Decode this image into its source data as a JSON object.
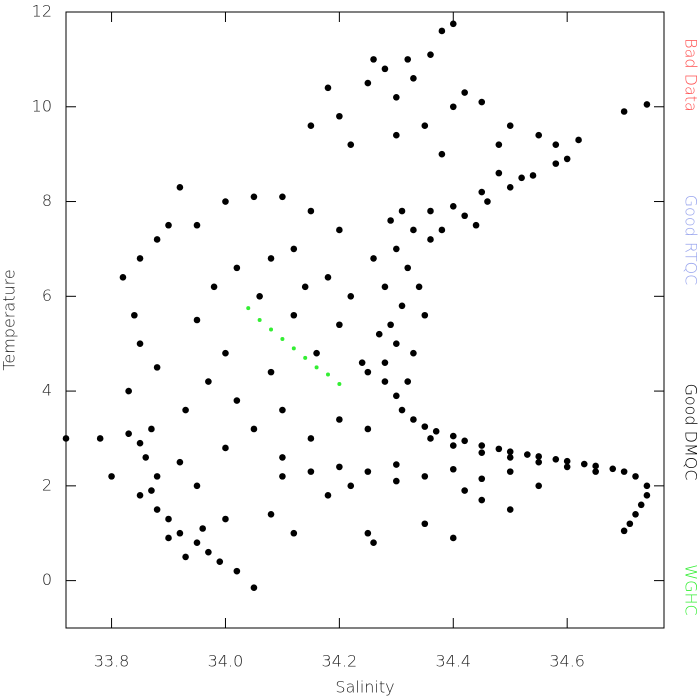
{
  "chart_data": {
    "type": "scatter",
    "x_label": "Salinity",
    "y_label": "Temperature",
    "xlim": [
      33.72,
      34.77
    ],
    "ylim": [
      -1,
      12
    ],
    "xticks": [
      33.8,
      {
        "value": 34,
        "label": "34.0"
      },
      34.2,
      34.4,
      34.6
    ],
    "yticks": [
      0,
      2,
      4,
      6,
      8,
      10,
      12
    ],
    "series": [
      {
        "name": "Bad Data",
        "color": "#ff5050",
        "x": [],
        "values": []
      },
      {
        "name": "Good RTQC",
        "color": "#9aa6ee",
        "x": [],
        "values": []
      },
      {
        "name": "Good DMQC",
        "color": "#000000",
        "x": [
          34.28,
          34.3,
          34.31,
          34.33,
          34.35,
          34.37,
          34.4,
          34.42,
          34.45,
          34.48,
          34.5,
          34.53,
          34.55,
          34.58,
          34.6,
          34.63,
          34.65,
          34.68,
          34.7,
          34.72,
          34.74,
          34.74,
          34.73,
          34.72,
          34.71,
          34.7,
          34.36,
          34.4,
          34.45,
          34.5,
          34.55,
          34.6,
          34.65,
          34.2,
          34.25,
          34.3,
          34.35,
          34.4,
          34.45,
          34.5,
          34.55,
          34.42,
          34.3,
          34.15,
          34.1,
          34.22,
          34.28,
          34.3,
          34.29,
          34.31,
          34.28,
          34.32,
          34.3,
          34.33,
          34.31,
          34.27,
          34.33,
          34.35,
          34.26,
          34.34,
          34.29,
          34.36,
          34.25,
          34.32,
          34.38,
          34.42,
          34.46,
          34.5,
          34.54,
          34.58,
          34.6,
          34.4,
          34.45,
          34.52,
          34.36,
          34.48,
          34.44,
          34.32,
          34.36,
          34.4,
          34.38,
          34.28,
          34.25,
          34.3,
          34.42,
          34.4,
          34.45,
          34.5,
          34.48,
          34.55,
          34.35,
          34.2,
          34.15,
          34.22,
          34.38,
          34.3,
          34.58,
          34.62,
          34.18,
          34.26,
          34.33,
          34.7,
          34.74,
          34.2,
          34.15,
          34.1,
          34.05,
          34.0,
          34.12,
          34.08,
          34.02,
          34.18,
          34.22,
          34.14,
          34.06,
          34.2,
          34.12,
          34.16,
          34.24,
          34.08,
          34.0,
          34.02,
          34.1,
          34.2,
          34.05,
          34.15,
          34.0,
          34.1,
          34.25,
          34.18,
          34.08,
          34.25,
          34.35,
          34.5,
          34.4,
          34.45,
          34.26,
          34.12,
          33.72,
          33.78,
          33.8,
          33.83,
          33.85,
          33.87,
          33.86,
          33.88,
          33.85,
          33.88,
          33.9,
          33.92,
          33.95,
          33.97,
          33.99,
          34.02,
          34.05,
          33.93,
          33.9,
          33.96,
          34.0,
          33.87,
          33.92,
          33.95,
          33.83,
          33.85,
          33.84,
          33.82,
          33.85,
          33.88,
          33.9,
          33.95,
          33.92,
          33.88,
          33.95,
          33.98,
          33.93,
          33.97
        ],
        "values": [
          4.2,
          3.9,
          3.6,
          3.4,
          3.25,
          3.15,
          3.05,
          2.95,
          2.85,
          2.78,
          2.72,
          2.66,
          2.62,
          2.56,
          2.52,
          2.46,
          2.42,
          2.36,
          2.3,
          2.2,
          2.0,
          1.8,
          1.6,
          1.4,
          1.2,
          1.05,
          3.0,
          2.85,
          2.7,
          2.6,
          2.5,
          2.4,
          2.3,
          2.4,
          2.3,
          2.45,
          2.2,
          2.35,
          2.15,
          2.3,
          2.0,
          1.9,
          2.1,
          2.3,
          2.2,
          2.0,
          4.6,
          5.0,
          5.4,
          5.8,
          6.2,
          6.6,
          7.0,
          7.4,
          7.8,
          5.2,
          4.8,
          5.6,
          6.8,
          6.2,
          7.6,
          7.2,
          4.4,
          4.2,
          7.4,
          7.7,
          8.0,
          8.3,
          8.55,
          8.8,
          8.9,
          7.9,
          8.2,
          8.5,
          7.8,
          8.6,
          7.5,
          11.0,
          11.1,
          11.75,
          11.6,
          10.8,
          10.5,
          10.2,
          10.3,
          10.0,
          10.1,
          9.6,
          9.2,
          9.4,
          9.6,
          9.8,
          9.6,
          9.2,
          9.0,
          9.4,
          9.2,
          9.3,
          10.4,
          11.0,
          10.6,
          9.9,
          10.05,
          7.4,
          7.8,
          8.1,
          8.1,
          8.0,
          7.0,
          6.8,
          6.6,
          6.4,
          6.0,
          6.2,
          6.0,
          5.4,
          5.6,
          4.8,
          4.6,
          4.4,
          4.8,
          3.8,
          3.6,
          3.4,
          3.2,
          3.0,
          2.8,
          2.6,
          3.2,
          1.8,
          1.4,
          1.0,
          1.2,
          1.5,
          0.9,
          1.7,
          0.8,
          1.0,
          3.0,
          3.0,
          2.2,
          3.1,
          2.9,
          3.2,
          2.6,
          2.2,
          1.8,
          1.5,
          1.3,
          1.0,
          0.8,
          0.6,
          0.4,
          0.2,
          -0.15,
          0.5,
          0.9,
          1.1,
          1.3,
          1.9,
          2.5,
          2.0,
          4.0,
          5.0,
          5.6,
          6.4,
          6.8,
          7.2,
          7.5,
          7.5,
          8.3,
          4.5,
          5.5,
          6.2,
          3.6,
          4.2
        ]
      },
      {
        "name": "WGHC",
        "color": "#33ee33",
        "x": [
          34.04,
          34.06,
          34.08,
          34.1,
          34.12,
          34.14,
          34.16,
          34.18,
          34.2
        ],
        "values": [
          5.75,
          5.5,
          5.3,
          5.1,
          4.9,
          4.7,
          4.5,
          4.35,
          4.15
        ]
      }
    ]
  }
}
